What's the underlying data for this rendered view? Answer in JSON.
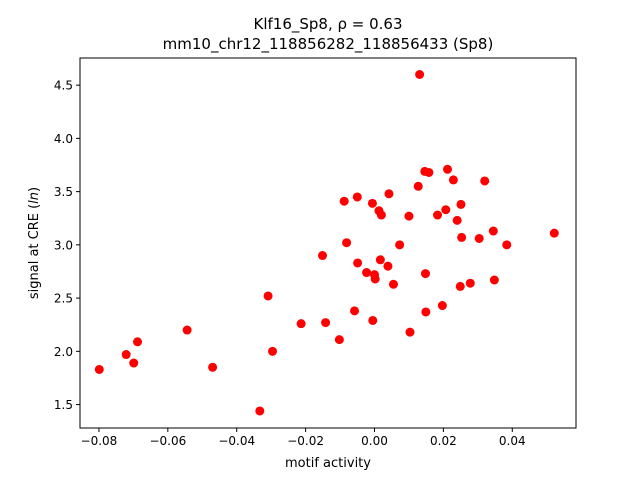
{
  "chart_data": {
    "type": "scatter",
    "title_line1": "Klf16_Sp8, ρ = 0.63",
    "title_line2": "mm10_chr12_118856282_118856433 (Sp8)",
    "xlabel": "motif activity",
    "ylabel": "signal at CRE (ln)",
    "xlim": [
      -0.0855,
      0.0585
    ],
    "ylim": [
      1.28,
      4.755
    ],
    "xticks": [
      -0.08,
      -0.06,
      -0.04,
      -0.02,
      0.0,
      0.02,
      0.04
    ],
    "xtick_labels": [
      "−0.08",
      "−0.06",
      "−0.04",
      "−0.02",
      "0.00",
      "0.02",
      "0.04"
    ],
    "yticks": [
      1.5,
      2.0,
      2.5,
      3.0,
      3.5,
      4.0,
      4.5
    ],
    "ytick_labels": [
      "1.5",
      "2.0",
      "2.5",
      "3.0",
      "3.5",
      "4.0",
      "4.5"
    ],
    "point_color": "#ff0000",
    "grid": false,
    "points": [
      {
        "x": -0.0799,
        "y": 1.83
      },
      {
        "x": -0.0721,
        "y": 1.97
      },
      {
        "x": -0.0699,
        "y": 1.89
      },
      {
        "x": -0.0688,
        "y": 2.09
      },
      {
        "x": -0.0544,
        "y": 2.2
      },
      {
        "x": -0.047,
        "y": 1.85
      },
      {
        "x": -0.0333,
        "y": 1.44
      },
      {
        "x": -0.0309,
        "y": 2.52
      },
      {
        "x": -0.0296,
        "y": 2.0
      },
      {
        "x": -0.0213,
        "y": 2.26
      },
      {
        "x": -0.0151,
        "y": 2.9
      },
      {
        "x": -0.0142,
        "y": 2.27
      },
      {
        "x": -0.0102,
        "y": 2.11
      },
      {
        "x": -0.0088,
        "y": 3.41
      },
      {
        "x": -0.0081,
        "y": 3.02
      },
      {
        "x": -0.0058,
        "y": 2.38
      },
      {
        "x": -0.005,
        "y": 3.45
      },
      {
        "x": -0.0049,
        "y": 2.83
      },
      {
        "x": -0.0023,
        "y": 2.74
      },
      {
        "x": -0.0006,
        "y": 3.39
      },
      {
        "x": -0.0005,
        "y": 2.29
      },
      {
        "x": 0.0,
        "y": 2.72
      },
      {
        "x": 0.0002,
        "y": 2.68
      },
      {
        "x": 0.0013,
        "y": 3.32
      },
      {
        "x": 0.0017,
        "y": 2.86
      },
      {
        "x": 0.002,
        "y": 3.28
      },
      {
        "x": 0.0039,
        "y": 2.8
      },
      {
        "x": 0.0042,
        "y": 3.48
      },
      {
        "x": 0.0055,
        "y": 2.63
      },
      {
        "x": 0.0073,
        "y": 3.0
      },
      {
        "x": 0.01,
        "y": 3.27
      },
      {
        "x": 0.0103,
        "y": 2.18
      },
      {
        "x": 0.0127,
        "y": 3.55
      },
      {
        "x": 0.0131,
        "y": 4.6
      },
      {
        "x": 0.0146,
        "y": 3.69
      },
      {
        "x": 0.0148,
        "y": 2.73
      },
      {
        "x": 0.0149,
        "y": 2.37
      },
      {
        "x": 0.0158,
        "y": 3.68
      },
      {
        "x": 0.0183,
        "y": 3.28
      },
      {
        "x": 0.0197,
        "y": 2.43
      },
      {
        "x": 0.0207,
        "y": 3.33
      },
      {
        "x": 0.0212,
        "y": 3.71
      },
      {
        "x": 0.0229,
        "y": 3.61
      },
      {
        "x": 0.024,
        "y": 3.23
      },
      {
        "x": 0.0249,
        "y": 2.61
      },
      {
        "x": 0.0251,
        "y": 3.38
      },
      {
        "x": 0.0253,
        "y": 3.07
      },
      {
        "x": 0.0278,
        "y": 2.64
      },
      {
        "x": 0.0304,
        "y": 3.06
      },
      {
        "x": 0.032,
        "y": 3.6
      },
      {
        "x": 0.0345,
        "y": 3.13
      },
      {
        "x": 0.0348,
        "y": 2.67
      },
      {
        "x": 0.0384,
        "y": 3.0
      },
      {
        "x": 0.0522,
        "y": 3.11
      }
    ]
  }
}
